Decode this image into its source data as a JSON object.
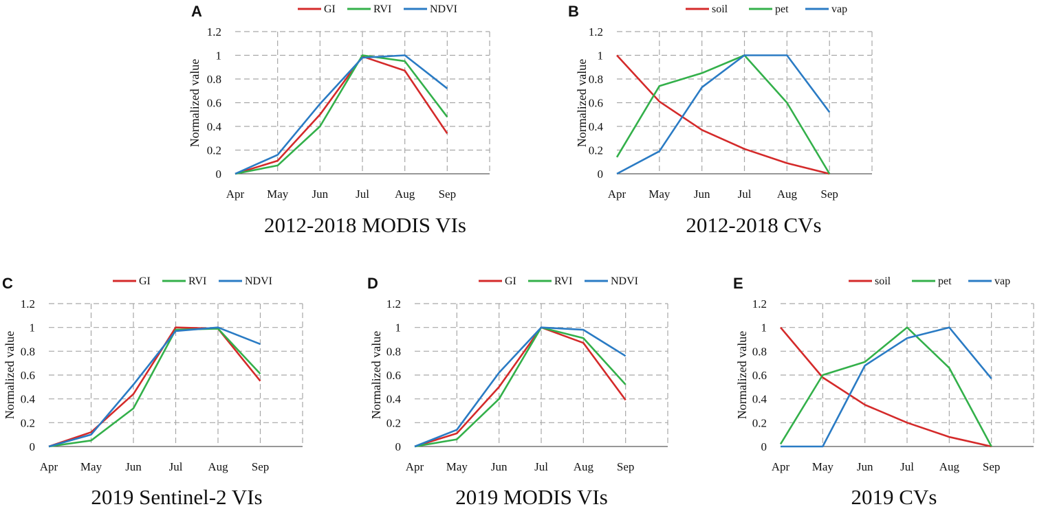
{
  "colors": {
    "red": "#d42a2a",
    "green": "#33b04a",
    "blue": "#2a7bc4"
  },
  "chart_data": [
    {
      "id": "A",
      "panel": "A",
      "type": "line",
      "title": "2012-2018 MODIS VIs",
      "xlabel": "",
      "ylabel": "Normalized  value",
      "categories": [
        "Apr",
        "May",
        "Jun",
        "Jul",
        "Aug",
        "Sep"
      ],
      "yticks": [
        "0",
        "0.2",
        "0.4",
        "0.6",
        "0.8",
        "1",
        "1.2"
      ],
      "ylim": [
        0,
        1.2
      ],
      "grid": true,
      "legend_position": "top",
      "series": [
        {
          "name": "GI",
          "color": "red",
          "values": [
            0,
            0.11,
            0.5,
            0.99,
            0.87,
            0.34
          ]
        },
        {
          "name": "RVI",
          "color": "green",
          "values": [
            0,
            0.07,
            0.4,
            1.0,
            0.95,
            0.48
          ]
        },
        {
          "name": "NDVI",
          "color": "blue",
          "values": [
            0,
            0.16,
            0.59,
            0.98,
            1.0,
            0.72
          ]
        }
      ]
    },
    {
      "id": "B",
      "panel": "B",
      "type": "line",
      "title": "2012-2018  CVs",
      "xlabel": "",
      "ylabel": "Normalized  value",
      "categories": [
        "Apr",
        "May",
        "Jun",
        "Jul",
        "Aug",
        "Sep"
      ],
      "yticks": [
        "0",
        "0.2",
        "0.4",
        "0.6",
        "0.8",
        "1",
        "1.2"
      ],
      "ylim": [
        0,
        1.2
      ],
      "grid": true,
      "legend_position": "top",
      "series": [
        {
          "name": "soil",
          "color": "red",
          "values": [
            1.0,
            0.61,
            0.37,
            0.21,
            0.09,
            0.0
          ]
        },
        {
          "name": "pet",
          "color": "green",
          "values": [
            0.14,
            0.74,
            0.85,
            1.0,
            0.6,
            0.0
          ]
        },
        {
          "name": "vap",
          "color": "blue",
          "values": [
            0,
            0.19,
            0.73,
            1.0,
            1.0,
            0.52
          ]
        }
      ]
    },
    {
      "id": "C",
      "panel": "C",
      "type": "line",
      "title": "2019 Sentinel-2 VIs",
      "xlabel": "",
      "ylabel": "Normalized  value",
      "categories": [
        "Apr",
        "May",
        "Jun",
        "Jul",
        "Aug",
        "Sep"
      ],
      "yticks": [
        "0",
        "0.2",
        "0.4",
        "0.6",
        "0.8",
        "1",
        "1.2"
      ],
      "ylim": [
        0,
        1.2
      ],
      "grid": true,
      "legend_position": "top",
      "series": [
        {
          "name": "GI",
          "color": "red",
          "values": [
            0,
            0.12,
            0.44,
            1.0,
            0.99,
            0.55
          ]
        },
        {
          "name": "RVI",
          "color": "green",
          "values": [
            0,
            0.05,
            0.32,
            0.98,
            0.99,
            0.61
          ]
        },
        {
          "name": "NDVI",
          "color": "blue",
          "values": [
            0,
            0.1,
            0.52,
            0.97,
            1.0,
            0.86
          ]
        }
      ]
    },
    {
      "id": "D",
      "panel": "D",
      "type": "line",
      "title": "2019 MODIS VIs",
      "xlabel": "",
      "ylabel": "Normalized  value",
      "categories": [
        "Apr",
        "May",
        "Jun",
        "Jul",
        "Aug",
        "Sep"
      ],
      "yticks": [
        "0",
        "0.2",
        "0.4",
        "0.6",
        "0.8",
        "1",
        "1.2"
      ],
      "ylim": [
        0,
        1.2
      ],
      "grid": true,
      "legend_position": "top",
      "series": [
        {
          "name": "GI",
          "color": "red",
          "values": [
            0,
            0.11,
            0.5,
            1.0,
            0.87,
            0.39
          ]
        },
        {
          "name": "RVI",
          "color": "green",
          "values": [
            0,
            0.06,
            0.4,
            1.0,
            0.91,
            0.52
          ]
        },
        {
          "name": "NDVI",
          "color": "blue",
          "values": [
            0,
            0.14,
            0.62,
            1.0,
            0.98,
            0.76
          ]
        }
      ]
    },
    {
      "id": "E",
      "panel": "E",
      "type": "line",
      "title": "2019 CVs",
      "xlabel": "",
      "ylabel": "Normalized  value",
      "categories": [
        "Apr",
        "May",
        "Jun",
        "Jul",
        "Aug",
        "Sep"
      ],
      "yticks": [
        "0",
        "0.2",
        "0.4",
        "0.6",
        "0.8",
        "1",
        "1.2"
      ],
      "ylim": [
        0,
        1.2
      ],
      "grid": true,
      "legend_position": "top",
      "series": [
        {
          "name": "soil",
          "color": "red",
          "values": [
            1.0,
            0.58,
            0.35,
            0.2,
            0.08,
            0.0
          ]
        },
        {
          "name": "pet",
          "color": "green",
          "values": [
            0.02,
            0.6,
            0.71,
            1.0,
            0.66,
            0.0
          ]
        },
        {
          "name": "vap",
          "color": "blue",
          "values": [
            0,
            0,
            0.68,
            0.91,
            1.0,
            0.57
          ]
        }
      ]
    }
  ]
}
